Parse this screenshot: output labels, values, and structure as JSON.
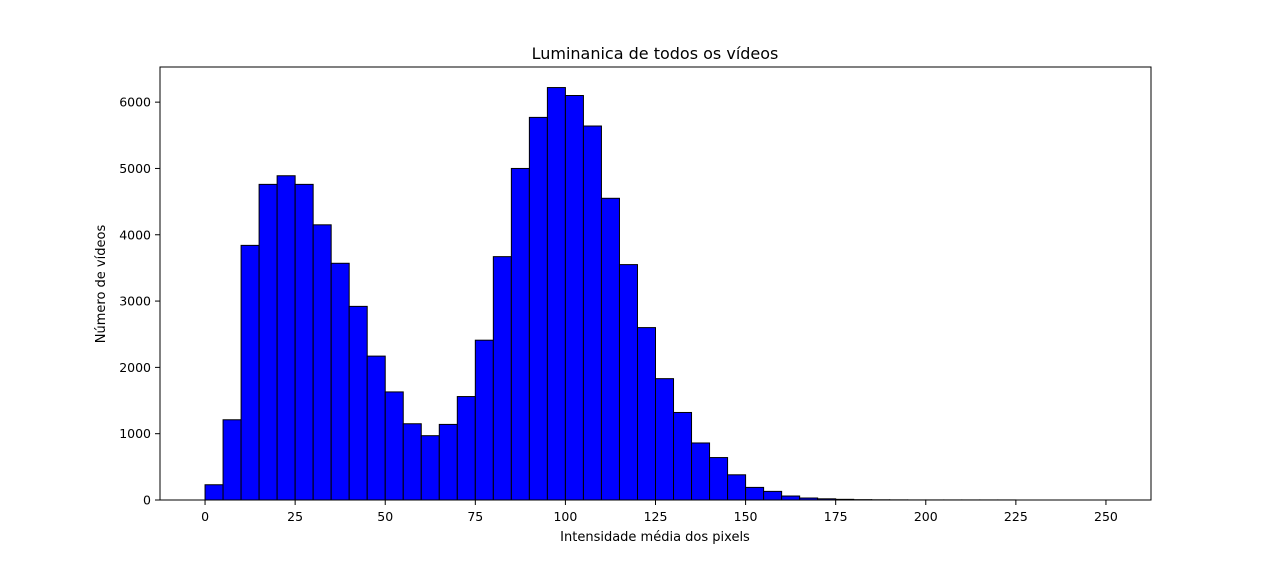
{
  "chart_data": {
    "type": "bar",
    "title": "Luminanica de todos os vídeos",
    "xlabel": "Intensidade média dos pixels",
    "ylabel": "Número de vídeos",
    "xlim": [
      -12.5,
      262.5
    ],
    "ylim": [
      0,
      6530
    ],
    "x_ticks": [
      0,
      25,
      50,
      75,
      100,
      125,
      150,
      175,
      200,
      225,
      250
    ],
    "y_ticks": [
      0,
      1000,
      2000,
      3000,
      4000,
      5000,
      6000
    ],
    "bin_width": 5,
    "bin_starts": [
      0,
      5,
      10,
      15,
      20,
      25,
      30,
      35,
      40,
      45,
      50,
      55,
      60,
      65,
      70,
      75,
      80,
      85,
      90,
      95,
      100,
      105,
      110,
      115,
      120,
      125,
      130,
      135,
      140,
      145,
      150,
      155,
      160,
      165,
      170,
      175,
      180,
      185,
      190,
      195,
      200,
      205,
      210,
      215,
      220,
      225,
      230,
      235,
      240,
      245
    ],
    "values": [
      230,
      1210,
      3840,
      4760,
      4890,
      4760,
      4150,
      3570,
      2920,
      2170,
      1630,
      1150,
      970,
      1140,
      1560,
      2410,
      3670,
      5000,
      5770,
      6220,
      6100,
      5640,
      4550,
      3550,
      2600,
      1830,
      1320,
      860,
      640,
      380,
      190,
      130,
      60,
      30,
      18,
      10,
      5,
      3,
      2,
      1,
      1,
      1,
      1,
      1,
      1,
      0,
      0,
      0,
      0,
      0
    ],
    "bar_color": "#0000ff",
    "edge_color": "#000000",
    "grid": false,
    "legend": "none"
  }
}
